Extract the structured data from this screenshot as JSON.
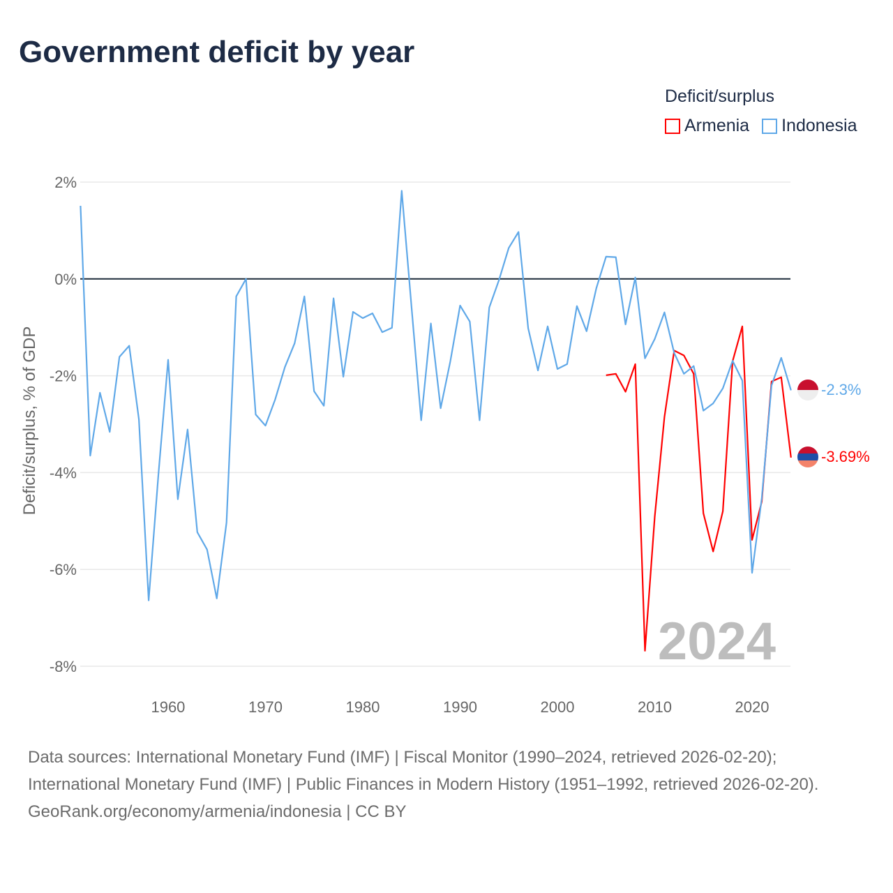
{
  "title": "Government deficit by year",
  "legend": {
    "title": "Deficit/surplus",
    "items": [
      {
        "label": "Armenia",
        "color": "#ff0000"
      },
      {
        "label": "Indonesia",
        "color": "#5fa8e8"
      }
    ]
  },
  "footer": {
    "sources": "Data sources: International Monetary Fund (IMF) | Fiscal Monitor (1990–2024, retrieved 2026-02-20); International Monetary Fund (IMF) | Public Finances in Modern History (1951–1992, retrieved 2026-02-20).",
    "credit": "GeoRank.org/economy/armenia/indonesia | CC BY"
  },
  "chart_data": {
    "type": "line",
    "title": "Government deficit by year",
    "xlabel": "",
    "ylabel": "Deficit/surplus, % of GDP",
    "xlim": [
      1951,
      2024
    ],
    "ylim": [
      -8,
      2
    ],
    "x_ticks": [
      1960,
      1970,
      1980,
      1990,
      2000,
      2010,
      2020
    ],
    "y_ticks": [
      2,
      0,
      -2,
      -4,
      -6,
      -8
    ],
    "y_tick_labels": [
      "2%",
      "0%",
      "-2%",
      "-4%",
      "-6%",
      "-8%"
    ],
    "watermark_year": "2024",
    "grid": true,
    "legend_position": "top-right",
    "series": [
      {
        "name": "Indonesia",
        "color": "#5fa8e8",
        "end_label": "-2.3%",
        "start_year": 1951,
        "values": [
          1.51,
          -3.65,
          -2.35,
          -3.16,
          -1.61,
          -1.38,
          -2.9,
          -6.64,
          -4.05,
          -1.67,
          -4.55,
          -3.11,
          -5.23,
          -5.59,
          -6.6,
          -5.03,
          -0.36,
          0.0,
          -2.8,
          -3.03,
          -2.49,
          -1.82,
          -1.33,
          -0.36,
          -2.32,
          -2.62,
          -0.4,
          -2.02,
          -0.68,
          -0.81,
          -0.71,
          -1.1,
          -1.01,
          1.82,
          -0.55,
          -2.92,
          -0.92,
          -2.67,
          -1.7,
          -0.55,
          -0.88,
          -2.92,
          -0.59,
          -0.02,
          0.64,
          0.97,
          -1.02,
          -1.89,
          -0.98,
          -1.86,
          -1.76,
          -0.56,
          -1.08,
          -0.19,
          0.46,
          0.45,
          -0.94,
          0.03,
          -1.64,
          -1.24,
          -0.69,
          -1.53,
          -1.96,
          -1.8,
          -2.72,
          -2.57,
          -2.26,
          -1.69,
          -2.1,
          -6.07,
          -4.53,
          -2.2,
          -1.63,
          -2.3
        ]
      },
      {
        "name": "Armenia",
        "color": "#ff0000",
        "end_label": "-3.69%",
        "start_year": 2005,
        "values": [
          -1.99,
          -1.96,
          -2.33,
          -1.76,
          -7.68,
          -4.91,
          -2.85,
          -1.48,
          -1.58,
          -1.96,
          -4.84,
          -5.63,
          -4.8,
          -1.7,
          -0.98,
          -5.39,
          -4.6,
          -2.12,
          -2.03,
          -3.69
        ]
      }
    ]
  }
}
